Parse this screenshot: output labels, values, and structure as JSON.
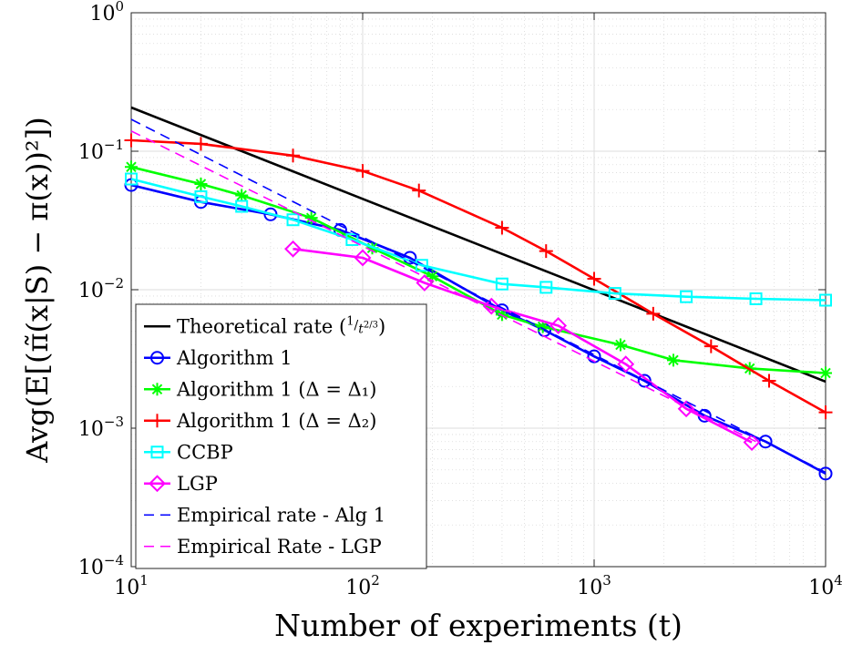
{
  "chart_data": {
    "type": "line",
    "title": "",
    "xlabel": "Number of experiments (t)",
    "ylabel": "Avg(E[(π̃(x|S) − π(x))²])",
    "xscale": "log",
    "yscale": "log",
    "xlim": [
      10,
      10000
    ],
    "ylim": [
      0.0001,
      1
    ],
    "grid": true,
    "minor_grid": true,
    "legend_position": "bottom-left",
    "x_ticks": [
      {
        "value": 10,
        "base": "10",
        "exp": "1"
      },
      {
        "value": 100,
        "base": "10",
        "exp": "2"
      },
      {
        "value": 1000,
        "base": "10",
        "exp": "3"
      },
      {
        "value": 10000,
        "base": "10",
        "exp": "4"
      }
    ],
    "y_ticks": [
      {
        "value": 0.0001,
        "base": "10",
        "exp": "−4"
      },
      {
        "value": 0.001,
        "base": "10",
        "exp": "−3"
      },
      {
        "value": 0.01,
        "base": "10",
        "exp": "−2"
      },
      {
        "value": 0.1,
        "base": "10",
        "exp": "−1"
      },
      {
        "value": 1,
        "base": "10",
        "exp": "0"
      }
    ],
    "series": [
      {
        "name": "Theoretical rate (1/t^{2/3})",
        "color": "#000000",
        "marker": "none",
        "dash": false,
        "points": [
          [
            10,
            0.207
          ],
          [
            10000,
            0.00217
          ]
        ]
      },
      {
        "name": "Algorithm 1",
        "color": "#0000ff",
        "marker": "circle",
        "dash": false,
        "points": [
          [
            10,
            0.057
          ],
          [
            20,
            0.043
          ],
          [
            40,
            0.035
          ],
          [
            80,
            0.027
          ],
          [
            160,
            0.017
          ],
          [
            400,
            0.0071
          ],
          [
            610,
            0.0051
          ],
          [
            1000,
            0.0033
          ],
          [
            1650,
            0.0022
          ],
          [
            3000,
            0.00123
          ],
          [
            5500,
            0.0008
          ],
          [
            10000,
            0.00047
          ]
        ]
      },
      {
        "name": "Algorithm 1 (Δ = Δ₁)",
        "color": "#00ff00",
        "marker": "star",
        "dash": false,
        "points": [
          [
            10,
            0.077
          ],
          [
            20,
            0.058
          ],
          [
            30,
            0.048
          ],
          [
            60,
            0.033
          ],
          [
            110,
            0.02
          ],
          [
            200,
            0.0125
          ],
          [
            400,
            0.0066
          ],
          [
            600,
            0.0054
          ],
          [
            1300,
            0.004
          ],
          [
            2200,
            0.0031
          ],
          [
            4700,
            0.0027
          ],
          [
            10000,
            0.0025
          ]
        ]
      },
      {
        "name": "Algorithm 1 (Δ = Δ₂)",
        "color": "#ff0000",
        "marker": "plus",
        "dash": false,
        "points": [
          [
            10,
            0.12
          ],
          [
            20,
            0.113
          ],
          [
            50,
            0.093
          ],
          [
            100,
            0.072
          ],
          [
            175,
            0.052
          ],
          [
            400,
            0.028
          ],
          [
            620,
            0.019
          ],
          [
            1000,
            0.012
          ],
          [
            1800,
            0.0067
          ],
          [
            3200,
            0.0039
          ],
          [
            5700,
            0.0022
          ],
          [
            10000,
            0.0013
          ]
        ]
      },
      {
        "name": "CCBP",
        "color": "#00ffff",
        "marker": "square",
        "dash": false,
        "points": [
          [
            10,
            0.063
          ],
          [
            20,
            0.047
          ],
          [
            30,
            0.04
          ],
          [
            50,
            0.032
          ],
          [
            90,
            0.023
          ],
          [
            180,
            0.015
          ],
          [
            400,
            0.011
          ],
          [
            620,
            0.0104
          ],
          [
            1230,
            0.0094
          ],
          [
            2500,
            0.0089
          ],
          [
            5000,
            0.0086
          ],
          [
            10000,
            0.0084
          ]
        ]
      },
      {
        "name": "LGP",
        "color": "#ff00ff",
        "marker": "diamond",
        "dash": false,
        "points": [
          [
            50,
            0.0197
          ],
          [
            100,
            0.017
          ],
          [
            185,
            0.0112
          ],
          [
            360,
            0.0076
          ],
          [
            700,
            0.0055
          ],
          [
            1370,
            0.0029
          ],
          [
            2500,
            0.00138
          ],
          [
            4800,
            0.00079
          ]
        ]
      },
      {
        "name": "Empirical rate - Alg 1",
        "color": "#0000ff",
        "marker": "none",
        "dash": true,
        "points": [
          [
            10,
            0.17
          ],
          [
            10000,
            0.00048
          ]
        ]
      },
      {
        "name": "Empirical Rate - LGP",
        "color": "#ff00ff",
        "marker": "none",
        "dash": true,
        "points": [
          [
            10,
            0.14
          ],
          [
            5000,
            0.0008
          ]
        ]
      }
    ]
  }
}
